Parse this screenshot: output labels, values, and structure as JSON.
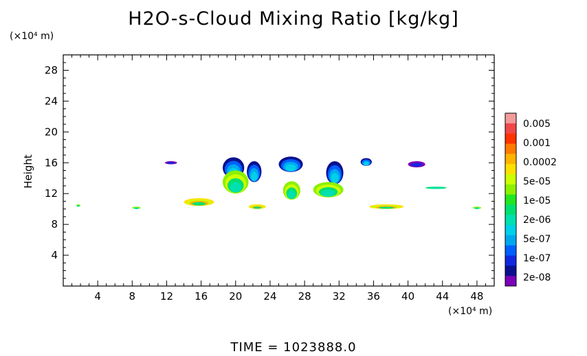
{
  "chart_data": {
    "type": "heatmap",
    "title": "H2O-s-Cloud Mixing Ratio [kg/kg]",
    "xlabel": "",
    "ylabel": "Height",
    "x_unit": "(×10⁴ m)",
    "y_unit": "(×10⁴ m)",
    "xlim": [
      0,
      50
    ],
    "ylim": [
      0,
      30
    ],
    "x_ticks": [
      4,
      8,
      12,
      16,
      20,
      24,
      28,
      32,
      36,
      40,
      44,
      48
    ],
    "y_ticks": [
      4,
      8,
      12,
      16,
      20,
      24,
      28
    ],
    "legend": {
      "placement": "right",
      "labels": [
        "0.005",
        "0.001",
        "0.0002",
        "5e-05",
        "1e-05",
        "2e-06",
        "5e-07",
        "1e-07",
        "2e-08"
      ],
      "colors": [
        "#f29b9b",
        "#f04848",
        "#ff3300",
        "#ff7a00",
        "#ffb400",
        "#ffe000",
        "#ccff00",
        "#8cf000",
        "#22e622",
        "#00e070",
        "#00e0b0",
        "#00d0e8",
        "#00a8f0",
        "#0060ff",
        "#1028e0",
        "#0a1090",
        "#7a00b8"
      ]
    },
    "features": [
      {
        "x": [
          11.8,
          13.2
        ],
        "y": [
          15.8,
          16.2
        ],
        "level": "2e-08"
      },
      {
        "x": [
          18.5,
          21.0
        ],
        "y": [
          14.0,
          16.7
        ],
        "level": "1e-07"
      },
      {
        "x": [
          21.3,
          23.0
        ],
        "y": [
          13.5,
          16.2
        ],
        "level": "1e-07"
      },
      {
        "x": [
          25.0,
          27.8
        ],
        "y": [
          14.8,
          16.8
        ],
        "level": "1e-07"
      },
      {
        "x": [
          30.5,
          32.5
        ],
        "y": [
          13.2,
          16.2
        ],
        "level": "1e-07"
      },
      {
        "x": [
          34.5,
          35.8
        ],
        "y": [
          15.6,
          16.6
        ],
        "level": "1e-07"
      },
      {
        "x": [
          40.0,
          42.0
        ],
        "y": [
          15.4,
          16.2
        ],
        "level": "2e-08"
      },
      {
        "x": [
          18.5,
          21.5
        ],
        "y": [
          12.0,
          15.0
        ],
        "level": "5e-05"
      },
      {
        "x": [
          25.5,
          27.5
        ],
        "y": [
          11.2,
          13.6
        ],
        "level": "5e-05"
      },
      {
        "x": [
          29.0,
          32.5
        ],
        "y": [
          11.5,
          13.5
        ],
        "level": "5e-05"
      },
      {
        "x": [
          42.0,
          44.5
        ],
        "y": [
          12.6,
          12.9
        ],
        "level": "2e-06"
      },
      {
        "x": [
          14.0,
          17.5
        ],
        "y": [
          10.4,
          11.4
        ],
        "level": "0.0002"
      },
      {
        "x": [
          21.5,
          23.5
        ],
        "y": [
          10.0,
          10.6
        ],
        "level": "0.0002"
      },
      {
        "x": [
          35.5,
          39.5
        ],
        "y": [
          10.0,
          10.6
        ],
        "level": "0.0002"
      },
      {
        "x": [
          1.5,
          2.0
        ],
        "y": [
          10.3,
          10.6
        ],
        "level": "5e-05"
      },
      {
        "x": [
          8.0,
          9.0
        ],
        "y": [
          10.0,
          10.3
        ],
        "level": "5e-05"
      },
      {
        "x": [
          47.5,
          48.5
        ],
        "y": [
          10.0,
          10.3
        ],
        "level": "5e-05"
      }
    ]
  },
  "footer": {
    "time_label": "TIME =  1023888.0"
  }
}
